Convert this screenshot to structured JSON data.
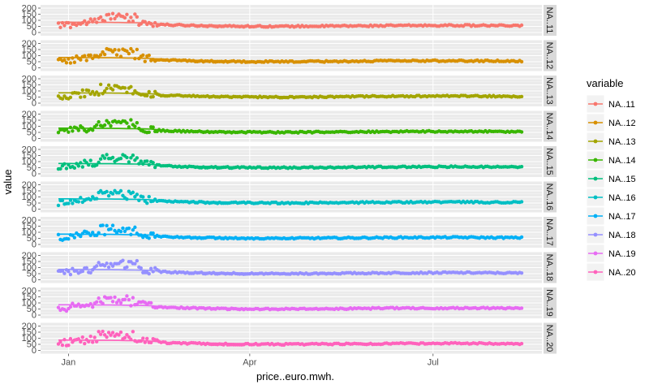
{
  "chart_data": {
    "type": "scatter",
    "xlabel": "price..euro.mwh.",
    "ylabel": "value",
    "x_ticks": [
      "Jan",
      "Apr",
      "Jul"
    ],
    "y_ticks": [
      0,
      50,
      100,
      150,
      200
    ],
    "ylim": [
      0,
      200
    ],
    "grid": true,
    "legend_title": "variable",
    "legend_position": "right",
    "smoothing_line": true,
    "profile": {
      "points": [
        {
          "day": 0,
          "value": 55
        },
        {
          "day": 10,
          "value": 75
        },
        {
          "day": 20,
          "value": 95
        },
        {
          "day": 27,
          "value": 130
        },
        {
          "day": 33,
          "value": 115
        },
        {
          "day": 40,
          "value": 85
        },
        {
          "day": 47,
          "value": 70
        },
        {
          "day": 55,
          "value": 62
        },
        {
          "day": 80,
          "value": 52
        },
        {
          "day": 110,
          "value": 50
        },
        {
          "day": 140,
          "value": 53
        },
        {
          "day": 170,
          "value": 57
        },
        {
          "day": 200,
          "value": 58
        },
        {
          "day": 230,
          "value": 55
        }
      ],
      "smooth": [
        {
          "day": 0,
          "value": 85
        },
        {
          "day": 30,
          "value": 82
        },
        {
          "day": 45,
          "value": 78
        },
        {
          "day": 55,
          "value": 65
        },
        {
          "day": 100,
          "value": 54
        },
        {
          "day": 150,
          "value": 56
        },
        {
          "day": 230,
          "value": 57
        }
      ]
    },
    "series": [
      {
        "name": "NA..11",
        "color": "#F8766D"
      },
      {
        "name": "NA..12",
        "color": "#D89000"
      },
      {
        "name": "NA..13",
        "color": "#A3A500"
      },
      {
        "name": "NA..14",
        "color": "#39B600"
      },
      {
        "name": "NA..15",
        "color": "#00BF7D"
      },
      {
        "name": "NA..16",
        "color": "#00BFC4"
      },
      {
        "name": "NA..17",
        "color": "#00B0F6"
      },
      {
        "name": "NA..18",
        "color": "#9590FF"
      },
      {
        "name": "NA..19",
        "color": "#E76BF3"
      },
      {
        "name": "NA..20",
        "color": "#FF62BC"
      }
    ]
  }
}
